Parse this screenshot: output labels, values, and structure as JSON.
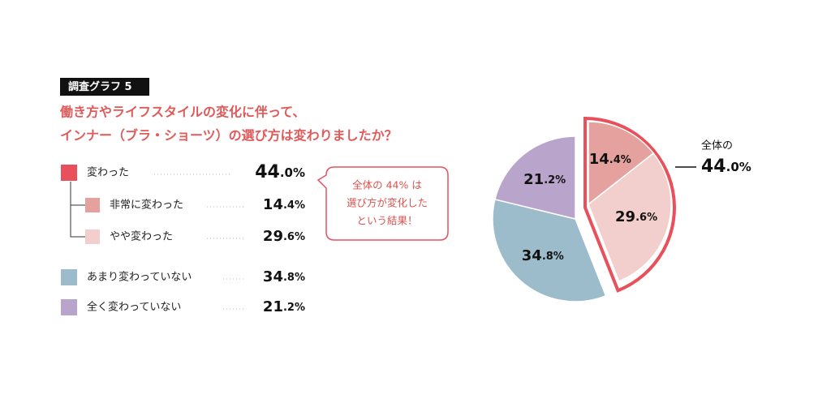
{
  "chart_data": {
    "type": "pie",
    "tag": "調査グラフ 5",
    "title": [
      "働き方やライフスタイルの変化に伴って、",
      "インナー（ブラ・ショーツ）の選び方は変わりましたか？"
    ],
    "group": {
      "name": "変わった",
      "value": 44.0,
      "value_label": "44.0%",
      "color": "#e8505b"
    },
    "categories": [
      "非常に変わった",
      "やや変わった",
      "あまり変わっていない",
      "全く変わっていない"
    ],
    "values": [
      14.4,
      29.6,
      34.8,
      21.2
    ],
    "value_labels": [
      "14.4%",
      "29.6%",
      "34.8%",
      "21.2%"
    ],
    "colors": [
      "#e4a19d",
      "#f2cfcd",
      "#9dbccb",
      "#b9a5cb"
    ],
    "note": [
      "全体の 44% は",
      "選び方が変化した",
      "という結果！"
    ],
    "callout_label": "全体の"
  }
}
